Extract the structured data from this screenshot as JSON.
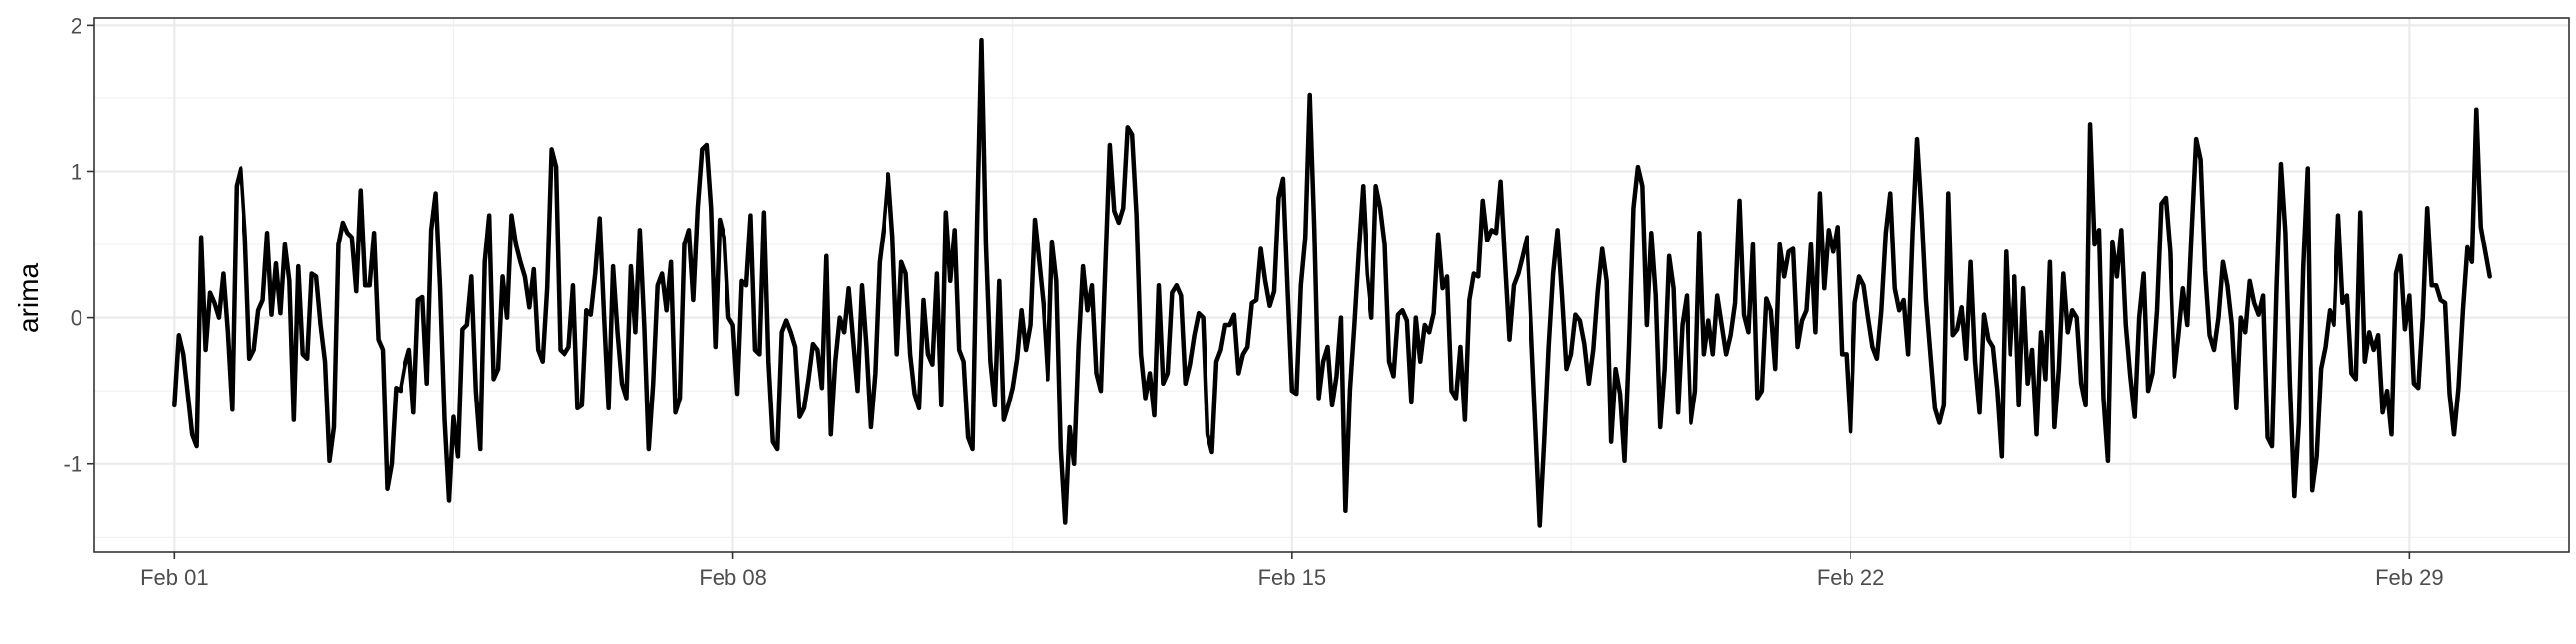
{
  "chart_data": {
    "type": "line",
    "title": "",
    "xlabel": "",
    "ylabel": "arima",
    "x_start": "2024-02-01",
    "x_end": "2024-03-01",
    "xlim": [
      "2023-01-31",
      "2024-03-02"
    ],
    "ylim": [
      -1.6,
      2.05
    ],
    "x_ticks": [
      {
        "date": "2024-02-01",
        "label": "Feb 01"
      },
      {
        "date": "2024-02-08",
        "label": "Feb 08"
      },
      {
        "date": "2024-02-15",
        "label": "Feb 15"
      },
      {
        "date": "2024-02-22",
        "label": "Feb 22"
      },
      {
        "date": "2024-02-29",
        "label": "Feb 29"
      }
    ],
    "y_ticks": [
      {
        "value": -1,
        "label": "-1"
      },
      {
        "value": 0,
        "label": "0"
      },
      {
        "value": 1,
        "label": "1"
      },
      {
        "value": 2,
        "label": "2"
      }
    ],
    "grid": true,
    "series": [
      {
        "color": "#000000",
        "values": [
          -0.6,
          -0.12,
          -0.25,
          -0.52,
          -0.8,
          -0.88,
          0.55,
          -0.22,
          0.17,
          0.1,
          0.0,
          0.3,
          -0.1,
          -0.63,
          0.9,
          1.02,
          0.55,
          -0.28,
          -0.22,
          0.05,
          0.12,
          0.58,
          0.02,
          0.37,
          0.03,
          0.5,
          0.25,
          -0.7,
          0.35,
          -0.25,
          -0.28,
          0.3,
          0.28,
          -0.05,
          -0.3,
          -0.98,
          -0.75,
          0.5,
          0.65,
          0.58,
          0.55,
          0.18,
          0.87,
          0.22,
          0.22,
          0.58,
          -0.15,
          -0.22,
          -1.17,
          -1.0,
          -0.48,
          -0.5,
          -0.33,
          -0.22,
          -0.65,
          0.12,
          0.14,
          -0.45,
          0.6,
          0.85,
          0.2,
          -0.7,
          -1.25,
          -0.68,
          -0.95,
          -0.08,
          -0.05,
          0.28,
          -0.5,
          -0.9,
          0.38,
          0.7,
          -0.42,
          -0.35,
          0.28,
          0.0,
          0.7,
          0.5,
          0.38,
          0.28,
          0.07,
          0.33,
          -0.22,
          -0.3,
          0.2,
          1.15,
          1.03,
          -0.22,
          -0.25,
          -0.2,
          0.22,
          -0.62,
          -0.6,
          0.05,
          0.02,
          0.3,
          0.68,
          0.0,
          -0.62,
          0.35,
          -0.1,
          -0.45,
          -0.55,
          0.35,
          -0.1,
          0.6,
          -0.05,
          -0.9,
          -0.45,
          0.22,
          0.3,
          0.05,
          0.38,
          -0.65,
          -0.55,
          0.5,
          0.6,
          0.12,
          0.75,
          1.15,
          1.18,
          0.75,
          -0.2,
          0.67,
          0.55,
          0.0,
          -0.05,
          -0.52,
          0.25,
          0.22,
          0.7,
          -0.22,
          -0.25,
          0.72,
          -0.3,
          -0.85,
          -0.9,
          -0.1,
          -0.02,
          -0.1,
          -0.2,
          -0.68,
          -0.62,
          -0.42,
          -0.18,
          -0.22,
          -0.48,
          0.42,
          -0.8,
          -0.3,
          0.0,
          -0.1,
          0.2,
          -0.15,
          -0.5,
          0.22,
          -0.2,
          -0.75,
          -0.38,
          0.38,
          0.62,
          0.98,
          0.55,
          -0.25,
          0.38,
          0.3,
          -0.25,
          -0.52,
          -0.62,
          0.12,
          -0.25,
          -0.32,
          0.3,
          -0.6,
          0.72,
          0.25,
          0.6,
          -0.22,
          -0.3,
          -0.82,
          -0.9,
          0.62,
          1.9,
          0.5,
          -0.3,
          -0.6,
          0.25,
          -0.7,
          -0.6,
          -0.48,
          -0.28,
          0.05,
          -0.22,
          -0.05,
          0.67,
          0.38,
          0.08,
          -0.42,
          0.52,
          0.25,
          -0.9,
          -1.4,
          -0.75,
          -1.0,
          -0.2,
          0.35,
          0.05,
          0.22,
          -0.38,
          -0.5,
          0.35,
          1.18,
          0.73,
          0.65,
          0.75,
          1.3,
          1.25,
          0.7,
          -0.25,
          -0.55,
          -0.38,
          -0.67,
          0.22,
          -0.45,
          -0.38,
          0.17,
          0.22,
          0.15,
          -0.45,
          -0.32,
          -0.12,
          0.03,
          -0.0,
          -0.8,
          -0.92,
          -0.3,
          -0.22,
          -0.05,
          -0.05,
          0.02,
          -0.38,
          -0.25,
          -0.2,
          0.1,
          0.12,
          0.47,
          0.25,
          0.08,
          0.18,
          0.82,
          0.95,
          0.2,
          -0.5,
          -0.52,
          0.22,
          0.55,
          1.52,
          0.62,
          -0.55,
          -0.3,
          -0.2,
          -0.6,
          -0.4,
          0.0,
          -1.32,
          -0.5,
          -0.05,
          0.45,
          0.9,
          0.3,
          0.0,
          0.9,
          0.75,
          0.5,
          -0.3,
          -0.4,
          0.02,
          0.05,
          -0.02,
          -0.58,
          0.0,
          -0.3,
          -0.05,
          -0.1,
          0.03,
          0.57,
          0.2,
          0.28,
          -0.5,
          -0.55,
          -0.2,
          -0.7,
          0.12,
          0.3,
          0.28,
          0.8,
          0.53,
          0.6,
          0.58,
          0.93,
          0.38,
          -0.15,
          0.22,
          0.3,
          0.42,
          0.55,
          -0.08,
          -0.75,
          -1.42,
          -0.85,
          -0.2,
          0.3,
          0.6,
          0.15,
          -0.35,
          -0.25,
          0.02,
          -0.02,
          -0.18,
          -0.45,
          -0.22,
          0.18,
          0.47,
          0.25,
          -0.85,
          -0.35,
          -0.52,
          -0.98,
          -0.2,
          0.75,
          1.03,
          0.9,
          -0.05,
          0.58,
          0.15,
          -0.75,
          -0.35,
          0.42,
          0.2,
          -0.65,
          -0.05,
          0.15,
          -0.72,
          -0.5,
          0.58,
          -0.25,
          -0.02,
          -0.25,
          0.15,
          -0.05,
          -0.25,
          -0.12,
          0.1,
          0.8,
          0.02,
          -0.1,
          0.5,
          -0.55,
          -0.5,
          0.13,
          0.05,
          -0.35,
          0.5,
          0.28,
          0.45,
          0.47,
          -0.2,
          -0.02,
          0.05,
          0.5,
          -0.1,
          0.85,
          0.2,
          0.6,
          0.45,
          0.62,
          -0.25,
          -0.25,
          -0.78,
          0.1,
          0.28,
          0.22,
          0.0,
          -0.2,
          -0.28,
          0.05,
          0.58,
          0.85,
          0.2,
          0.05,
          0.12,
          -0.25,
          0.58,
          1.22,
          0.73,
          0.12,
          -0.25,
          -0.62,
          -0.72,
          -0.6,
          0.85,
          -0.12,
          -0.08,
          0.07,
          -0.28,
          0.38,
          -0.3,
          -0.65,
          0.02,
          -0.15,
          -0.2,
          -0.5,
          -0.95,
          0.45,
          -0.25,
          0.28,
          -0.6,
          0.2,
          -0.45,
          -0.22,
          -0.8,
          -0.1,
          -0.42,
          0.38,
          -0.75,
          -0.35,
          0.3,
          -0.1,
          0.05,
          0.0,
          -0.45,
          -0.6,
          1.32,
          0.5,
          0.6,
          -0.55,
          -0.98,
          0.52,
          0.28,
          0.6,
          -0.05,
          -0.4,
          -0.68,
          0.0,
          0.3,
          -0.5,
          -0.38,
          0.05,
          0.78,
          0.82,
          0.45,
          -0.4,
          -0.12,
          0.2,
          -0.05,
          0.6,
          1.22,
          1.08,
          0.32,
          -0.12,
          -0.22,
          0.0,
          0.38,
          0.22,
          -0.05,
          -0.62,
          0.0,
          -0.1,
          0.25,
          0.1,
          0.02,
          0.15,
          -0.82,
          -0.88,
          0.2,
          1.05,
          0.58,
          -0.45,
          -1.22,
          -0.72,
          0.35,
          1.02,
          -1.18,
          -0.95,
          -0.35,
          -0.2,
          0.05,
          -0.05,
          0.7,
          0.1,
          0.15,
          -0.38,
          -0.42,
          0.72,
          -0.3,
          -0.1,
          -0.22,
          -0.12,
          -0.65,
          -0.5,
          -0.8,
          0.3,
          0.42,
          -0.08,
          0.15,
          -0.45,
          -0.48,
          0.0,
          0.75,
          0.22,
          0.22,
          0.12,
          0.1,
          -0.52,
          -0.8,
          -0.48,
          0.05,
          0.48,
          0.38,
          1.42,
          0.62,
          0.45,
          0.28
        ]
      }
    ]
  }
}
